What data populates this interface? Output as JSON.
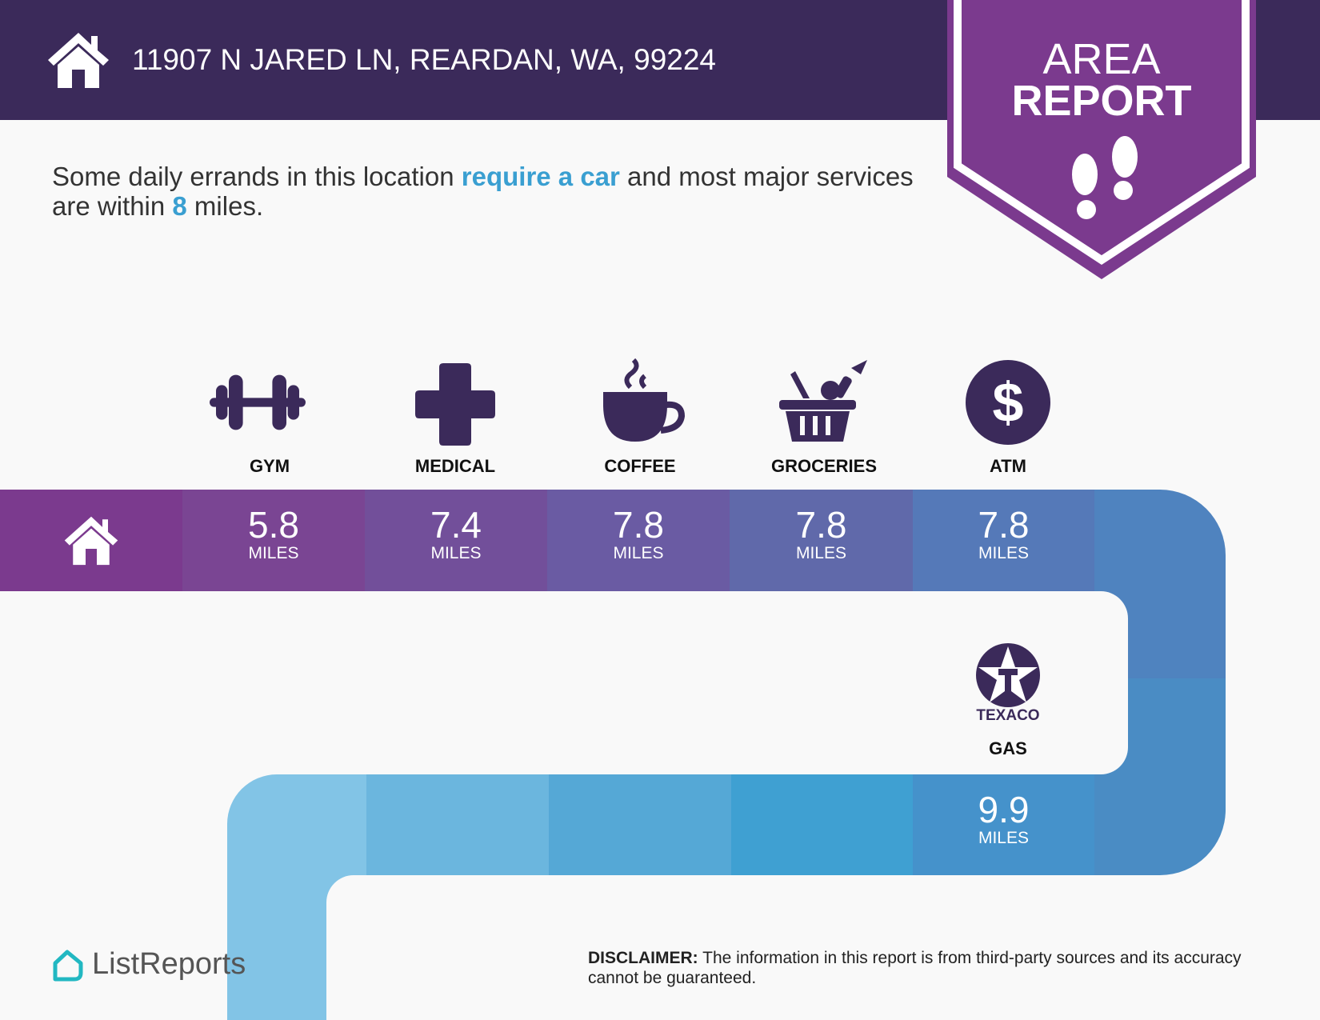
{
  "header": {
    "address": "11907 N JARED LN, REARDAN, WA, 99224",
    "badge_line1": "AREA",
    "badge_line2": "REPORT",
    "home_icon": "house-icon",
    "badge_icon": "footprints-icon"
  },
  "intro": {
    "part1": "Some daily errands in this location ",
    "highlight1": "require a car",
    "part2": " and most major services are within ",
    "highlight2": "8",
    "part3": " miles."
  },
  "services": [
    {
      "label": "GYM",
      "distance": "5.8",
      "unit": "MILES",
      "icon": "dumbbell-icon"
    },
    {
      "label": "MEDICAL",
      "distance": "7.4",
      "unit": "MILES",
      "icon": "medical-cross-icon"
    },
    {
      "label": "COFFEE",
      "distance": "7.8",
      "unit": "MILES",
      "icon": "coffee-cup-icon"
    },
    {
      "label": "GROCERIES",
      "distance": "7.8",
      "unit": "MILES",
      "icon": "grocery-basket-icon"
    },
    {
      "label": "ATM",
      "distance": "7.8",
      "unit": "MILES",
      "icon": "dollar-icon"
    },
    {
      "label": "GAS",
      "distance": "9.9",
      "unit": "MILES",
      "icon": "texaco-logo-icon",
      "brand": "TEXACO"
    }
  ],
  "colors": {
    "header": "#3b2a5a",
    "badge": "#7b3a8e",
    "highlight": "#3a9fd1",
    "logo": "#22b8c2"
  },
  "footer": {
    "logo": "ListReports",
    "disclaimer_label": "DISCLAIMER:",
    "disclaimer_text": " The information in this report is from third-party sources and its accuracy cannot be guaranteed."
  }
}
